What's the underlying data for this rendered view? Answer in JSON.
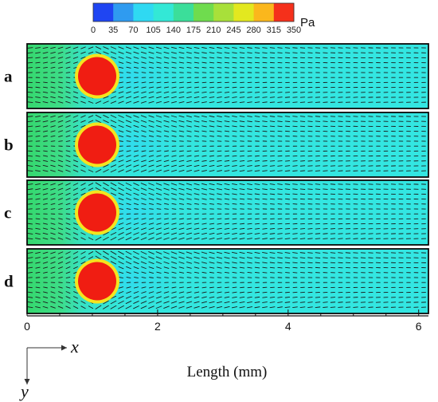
{
  "colorbar": {
    "unit": "Pa",
    "tick_labels": [
      "0",
      "35",
      "70",
      "105",
      "140",
      "175",
      "210",
      "245",
      "280",
      "315",
      "350"
    ],
    "colors": [
      "#1f45f2",
      "#2f9bf0",
      "#2fd9f2",
      "#33e8d6",
      "#3bde9a",
      "#6fdc4e",
      "#a8e03a",
      "#e3e81f",
      "#fbb71c",
      "#f5301b"
    ]
  },
  "colors": {
    "field_low": "#33e6de",
    "field_high": "#2fdc76",
    "particle": "#f01d12",
    "particle_ring": "#f4e41e",
    "vector": "#1b1b1b",
    "frame": "#0a0a0a"
  },
  "panels": [
    {
      "label": "a"
    },
    {
      "label": "b"
    },
    {
      "label": "c"
    },
    {
      "label": "d"
    }
  ],
  "x_axis": {
    "title": "Length (mm)",
    "ticks": [
      "0",
      "2",
      "4",
      "6"
    ],
    "range": [
      0,
      6.15
    ]
  },
  "coord_axes": {
    "x_label": "x",
    "y_label": "y"
  }
}
